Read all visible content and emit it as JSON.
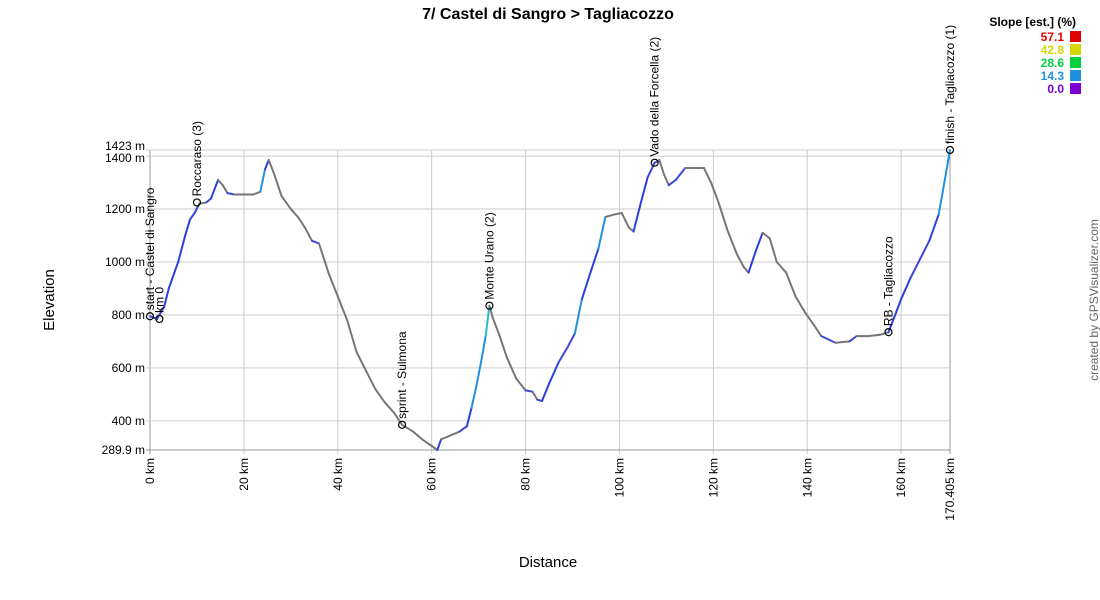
{
  "chart_data": {
    "type": "area",
    "title": "7/ Castel di Sangro > Tagliacozzo",
    "xlabel": "Distance",
    "ylabel": "Elevation",
    "xlim": [
      0,
      170.405
    ],
    "ylim": [
      289.9,
      1423
    ],
    "x_ticks": [
      {
        "value": 0,
        "label": "0 km"
      },
      {
        "value": 20,
        "label": "20 km"
      },
      {
        "value": 40,
        "label": "40 km"
      },
      {
        "value": 60,
        "label": "60 km"
      },
      {
        "value": 80,
        "label": "80 km"
      },
      {
        "value": 100,
        "label": "100 km"
      },
      {
        "value": 120,
        "label": "120 km"
      },
      {
        "value": 140,
        "label": "140 km"
      },
      {
        "value": 160,
        "label": "160 km"
      },
      {
        "value": 170.405,
        "label": "170.405 km"
      }
    ],
    "y_ticks": [
      {
        "value": 289.9,
        "label": "289.9 m"
      },
      {
        "value": 400,
        "label": "400 m"
      },
      {
        "value": 600,
        "label": "600 m"
      },
      {
        "value": 800,
        "label": "800 m"
      },
      {
        "value": 1000,
        "label": "1000 m"
      },
      {
        "value": 1200,
        "label": "1200 m"
      },
      {
        "value": 1400,
        "label": "1400 m"
      },
      {
        "value": 1423,
        "label": "1423 m"
      }
    ],
    "grid": true,
    "profile": [
      [
        0,
        795
      ],
      [
        1.5,
        785
      ],
      [
        3,
        830
      ],
      [
        4,
        900
      ],
      [
        6,
        1000
      ],
      [
        7.5,
        1100
      ],
      [
        8.5,
        1160
      ],
      [
        9.5,
        1185
      ],
      [
        10.5,
        1220
      ],
      [
        12,
        1225
      ],
      [
        13,
        1240
      ],
      [
        14.5,
        1310
      ],
      [
        15.5,
        1290
      ],
      [
        16.5,
        1260
      ],
      [
        18,
        1255
      ],
      [
        20,
        1255
      ],
      [
        22,
        1255
      ],
      [
        23.5,
        1265
      ],
      [
        24.5,
        1350
      ],
      [
        25.3,
        1385
      ],
      [
        26.5,
        1330
      ],
      [
        28,
        1250
      ],
      [
        30,
        1200
      ],
      [
        31.5,
        1170
      ],
      [
        33,
        1130
      ],
      [
        34.5,
        1080
      ],
      [
        36,
        1070
      ],
      [
        38,
        960
      ],
      [
        40,
        870
      ],
      [
        42,
        780
      ],
      [
        44,
        660
      ],
      [
        46,
        590
      ],
      [
        48,
        520
      ],
      [
        50,
        470
      ],
      [
        52,
        430
      ],
      [
        53.7,
        385
      ],
      [
        56,
        360
      ],
      [
        58,
        330
      ],
      [
        60,
        305
      ],
      [
        61.2,
        290
      ],
      [
        62,
        330
      ],
      [
        64,
        345
      ],
      [
        66,
        360
      ],
      [
        67.5,
        380
      ],
      [
        68.5,
        450
      ],
      [
        69.5,
        530
      ],
      [
        70.5,
        620
      ],
      [
        71.5,
        720
      ],
      [
        72.3,
        835
      ],
      [
        73,
        790
      ],
      [
        74.5,
        720
      ],
      [
        76,
        640
      ],
      [
        78,
        560
      ],
      [
        80,
        515
      ],
      [
        81.5,
        510
      ],
      [
        82.5,
        480
      ],
      [
        83.5,
        475
      ],
      [
        85,
        540
      ],
      [
        87,
        620
      ],
      [
        89,
        680
      ],
      [
        90.5,
        730
      ],
      [
        92,
        860
      ],
      [
        94,
        970
      ],
      [
        95.5,
        1050
      ],
      [
        97,
        1170
      ],
      [
        99,
        1180
      ],
      [
        100.5,
        1185
      ],
      [
        102,
        1130
      ],
      [
        103,
        1115
      ],
      [
        104.5,
        1220
      ],
      [
        106,
        1320
      ],
      [
        107.5,
        1375
      ],
      [
        108.5,
        1385
      ],
      [
        109.5,
        1330
      ],
      [
        110.5,
        1290
      ],
      [
        112,
        1310
      ],
      [
        114,
        1355
      ],
      [
        116,
        1355
      ],
      [
        118,
        1355
      ],
      [
        119.5,
        1300
      ],
      [
        121,
        1230
      ],
      [
        123,
        1120
      ],
      [
        125,
        1030
      ],
      [
        126.5,
        980
      ],
      [
        127.5,
        960
      ],
      [
        129,
        1040
      ],
      [
        130.5,
        1110
      ],
      [
        132,
        1090
      ],
      [
        133.5,
        1000
      ],
      [
        135.5,
        960
      ],
      [
        137.5,
        870
      ],
      [
        139.5,
        810
      ],
      [
        141.5,
        760
      ],
      [
        143,
        720
      ],
      [
        146,
        695
      ],
      [
        149,
        700
      ],
      [
        150.5,
        720
      ],
      [
        153,
        720
      ],
      [
        155.5,
        725
      ],
      [
        157.3,
        735
      ],
      [
        158.5,
        790
      ],
      [
        160,
        860
      ],
      [
        162,
        940
      ],
      [
        164,
        1010
      ],
      [
        166,
        1080
      ],
      [
        168,
        1180
      ],
      [
        169.2,
        1300
      ],
      [
        170.405,
        1423
      ]
    ],
    "waypoints": [
      {
        "x": 0,
        "y": 795,
        "label": "start - Castel di Sangro"
      },
      {
        "x": 2,
        "y": 785,
        "label": "km 0"
      },
      {
        "x": 10,
        "y": 1225,
        "label": "Roccaraso (3)"
      },
      {
        "x": 53.7,
        "y": 385,
        "label": "sprint - Sulmona"
      },
      {
        "x": 72.3,
        "y": 835,
        "label": "Monte Urano (2)"
      },
      {
        "x": 107.5,
        "y": 1375,
        "label": "Vado della Forcella (2)"
      },
      {
        "x": 157.3,
        "y": 735,
        "label": "RB - Tagliacozzo"
      },
      {
        "x": 170.405,
        "y": 1423,
        "label": "finish - Tagliacozzo (1)"
      }
    ],
    "legend": {
      "title": "Slope [est.] (%)",
      "position": "top-right",
      "items": [
        {
          "value": "57.1",
          "color": "#e00000"
        },
        {
          "value": "42.8",
          "color": "#d6d600"
        },
        {
          "value": "28.6",
          "color": "#00d040"
        },
        {
          "value": "14.3",
          "color": "#2090e0"
        },
        {
          "value": "0.0",
          "color": "#7a00d6"
        }
      ]
    }
  },
  "credit": "created by GPSVisualizer.com"
}
